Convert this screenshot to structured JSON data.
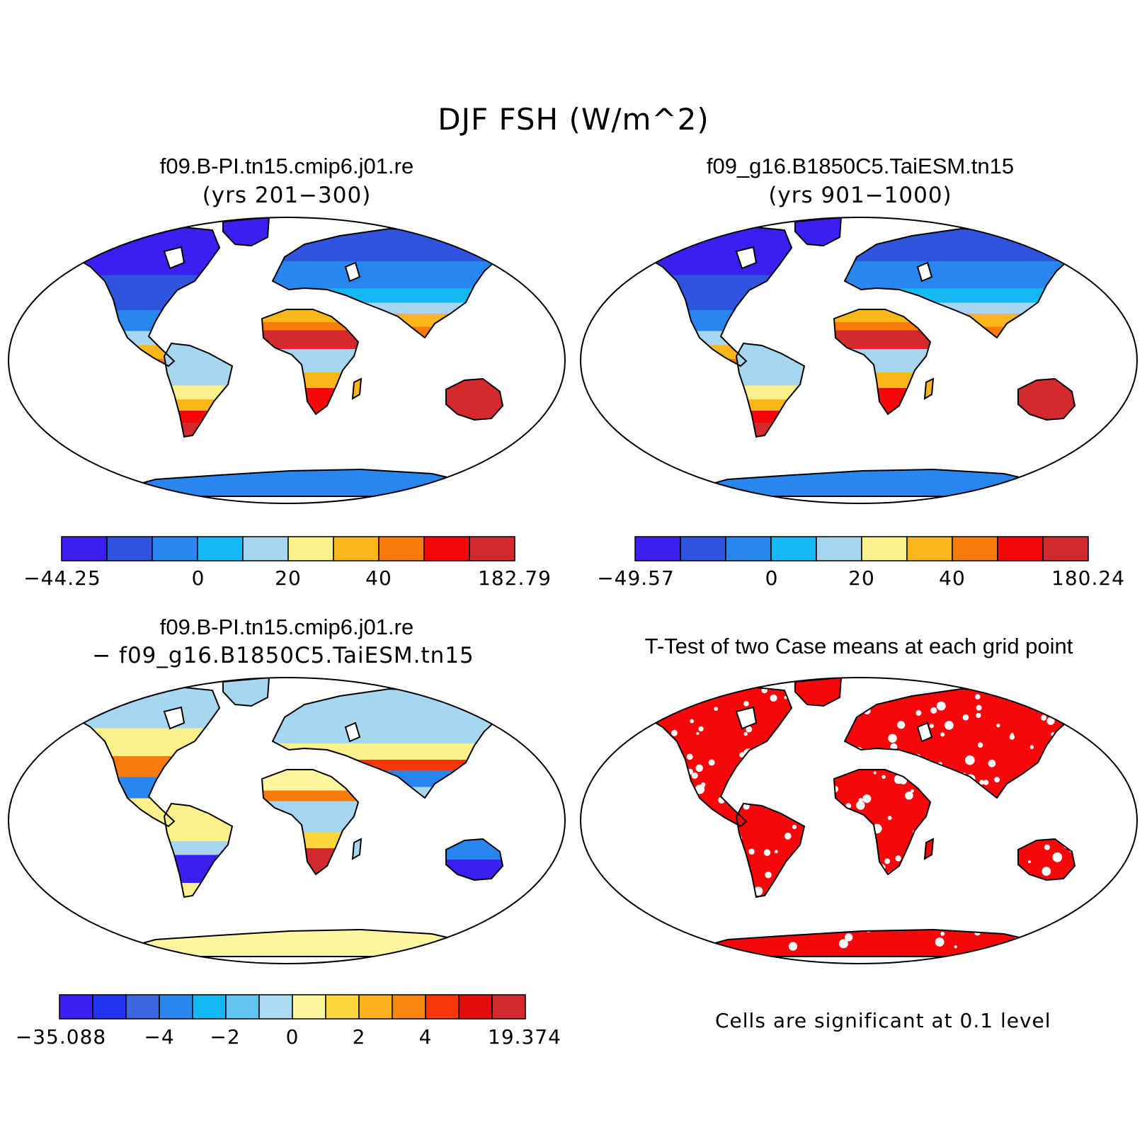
{
  "main_title": "DJF FSH (W/m^2)",
  "panels": {
    "top_left": {
      "title": "f09.B-PI.tn15.cmip6.j01.re",
      "subtitle": "(yrs 201−300)",
      "colorbar": {
        "colors": [
          "#3b1ff0",
          "#2f55de",
          "#2a86ef",
          "#14b8f2",
          "#a6d6f0",
          "#fbf18a",
          "#fbb71a",
          "#f97a0d",
          "#f6070a",
          "#d42a2e"
        ],
        "labels": [
          "−44.25",
          "0",
          "20",
          "40",
          "182.79"
        ]
      }
    },
    "top_right": {
      "title": "f09_g16.B1850C5.TaiESM.tn15",
      "subtitle": "(yrs 901−1000)",
      "colorbar": {
        "colors": [
          "#3b1ff0",
          "#2f55de",
          "#2a86ef",
          "#14b8f2",
          "#a6d6f0",
          "#fbf18a",
          "#fbb71a",
          "#f97a0d",
          "#f6070a",
          "#d42a2e"
        ],
        "labels": [
          "−49.57",
          "0",
          "20",
          "40",
          "180.24"
        ]
      }
    },
    "bottom_left": {
      "title": "f09.B-PI.tn15.cmip6.j01.re",
      "subtitle": "− f09_g16.B1850C5.TaiESM.tn15",
      "colorbar": {
        "colors": [
          "#3b1ff0",
          "#2232ee",
          "#3c66df",
          "#2a86ef",
          "#14b8f2",
          "#62c4f0",
          "#acdcf3",
          "#fdf6a0",
          "#fdd83a",
          "#fbb01d",
          "#f9860f",
          "#f6380b",
          "#e20d0b",
          "#d42a2e"
        ],
        "labels": [
          "−35.088",
          "−4",
          "−2",
          "0",
          "2",
          "4",
          "19.374"
        ]
      }
    },
    "bottom_right": {
      "title": "T-Test of two Case means at each grid point",
      "note": "Cells are significant at 0.1 level",
      "color": "#f6070a"
    }
  }
}
